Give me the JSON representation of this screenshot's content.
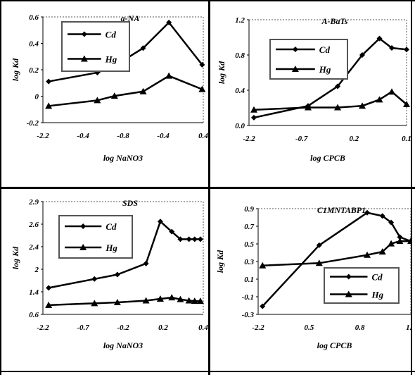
{
  "chart_data": [
    {
      "type": "line",
      "title": "a-NA",
      "xlabel": "log NaNO3",
      "ylabel": "log Kd",
      "x_ticks": [
        "-2.2",
        "-0.4",
        "-0.8",
        "-0.4",
        "0.4"
      ],
      "y_ticks": [
        "0.6",
        "0.4",
        "0.2",
        "0",
        "-0.2"
      ],
      "xlim": [
        -2.3,
        0.5
      ],
      "ylim": [
        -0.25,
        0.7
      ],
      "legend_position": "upper-left",
      "series": [
        {
          "name": "Cd",
          "marker": "diamond",
          "x": [
            -2.2,
            -1.35,
            -1.05,
            -0.55,
            -0.1,
            0.48
          ],
          "y": [
            0.12,
            0.2,
            0.26,
            0.42,
            0.65,
            0.27
          ]
        },
        {
          "name": "Hg",
          "marker": "triangle",
          "x": [
            -2.2,
            -1.35,
            -1.05,
            -0.55,
            -0.1,
            0.48
          ],
          "y": [
            -0.1,
            -0.05,
            -0.01,
            0.03,
            0.17,
            0.05
          ]
        }
      ]
    },
    {
      "type": "line",
      "title": "A-BaTs",
      "xlabel": "log CPCB",
      "ylabel": "log Kd",
      "x_ticks": [
        "-2.2",
        "-0.7",
        "0.2",
        "0.1"
      ],
      "y_ticks": [
        "1.2",
        "0.8",
        "0.4",
        "0.0"
      ],
      "xlim": [
        -2.3,
        0.9
      ],
      "ylim": [
        -0.05,
        1.3
      ],
      "legend_position": "upper-left",
      "series": [
        {
          "name": "Cd",
          "marker": "diamond",
          "x": [
            -2.2,
            -1.1,
            -0.5,
            0.0,
            0.35,
            0.6,
            0.9
          ],
          "y": [
            0.05,
            0.2,
            0.45,
            0.85,
            1.06,
            0.94,
            0.92
          ]
        },
        {
          "name": "Hg",
          "marker": "triangle",
          "x": [
            -2.2,
            -1.1,
            -0.5,
            0.0,
            0.35,
            0.6,
            0.9
          ],
          "y": [
            0.15,
            0.18,
            0.18,
            0.2,
            0.28,
            0.38,
            0.22
          ]
        }
      ]
    },
    {
      "type": "line",
      "title": "SDS",
      "xlabel": "log NaNO3",
      "ylabel": "log Kd",
      "x_ticks": [
        "-2.2",
        "-0.7",
        "-0.2",
        "0.2",
        "0.4"
      ],
      "y_ticks": [
        "2.9",
        "2.6",
        "2.4",
        "2",
        "1.4",
        "0.6"
      ],
      "xlim": [
        -2.3,
        0.5
      ],
      "ylim": [
        0.45,
        3.0
      ],
      "legend_position": "upper-left",
      "series": [
        {
          "name": "Cd",
          "marker": "diamond",
          "x": [
            -2.2,
            -1.4,
            -1.0,
            -0.5,
            -0.25,
            -0.05,
            0.1,
            0.25,
            0.35,
            0.45
          ],
          "y": [
            1.05,
            1.25,
            1.35,
            1.6,
            2.55,
            2.32,
            2.15,
            2.15,
            2.15,
            2.15
          ]
        },
        {
          "name": "Hg",
          "marker": "triangle",
          "x": [
            -2.2,
            -1.4,
            -1.0,
            -0.5,
            -0.25,
            -0.05,
            0.1,
            0.25,
            0.35,
            0.45
          ],
          "y": [
            0.66,
            0.7,
            0.72,
            0.76,
            0.8,
            0.83,
            0.79,
            0.76,
            0.75,
            0.75
          ]
        }
      ]
    },
    {
      "type": "line",
      "title": "C1MNTABP1",
      "xlabel": "log CPCB",
      "ylabel": "log Kd",
      "x_ticks": [
        "-2.2",
        "0.5",
        "0.8",
        "1.1"
      ],
      "y_ticks": [
        "0.9",
        "0.7",
        "0.5",
        "0.3",
        "0.1",
        "-0.1",
        "-0.3"
      ],
      "xlim": [
        -2.3,
        1.2
      ],
      "ylim": [
        -0.35,
        0.95
      ],
      "legend_position": "lower-right",
      "series": [
        {
          "name": "Cd",
          "marker": "diamond",
          "x": [
            -2.2,
            -0.9,
            0.2,
            0.55,
            0.75,
            0.95,
            1.2
          ],
          "y": [
            -0.25,
            0.5,
            0.9,
            0.86,
            0.78,
            0.6,
            0.55
          ]
        },
        {
          "name": "Hg",
          "marker": "triangle",
          "x": [
            -2.2,
            -0.9,
            0.2,
            0.55,
            0.75,
            0.95,
            1.2
          ],
          "y": [
            0.25,
            0.28,
            0.38,
            0.42,
            0.52,
            0.55,
            0.55
          ]
        }
      ]
    }
  ]
}
